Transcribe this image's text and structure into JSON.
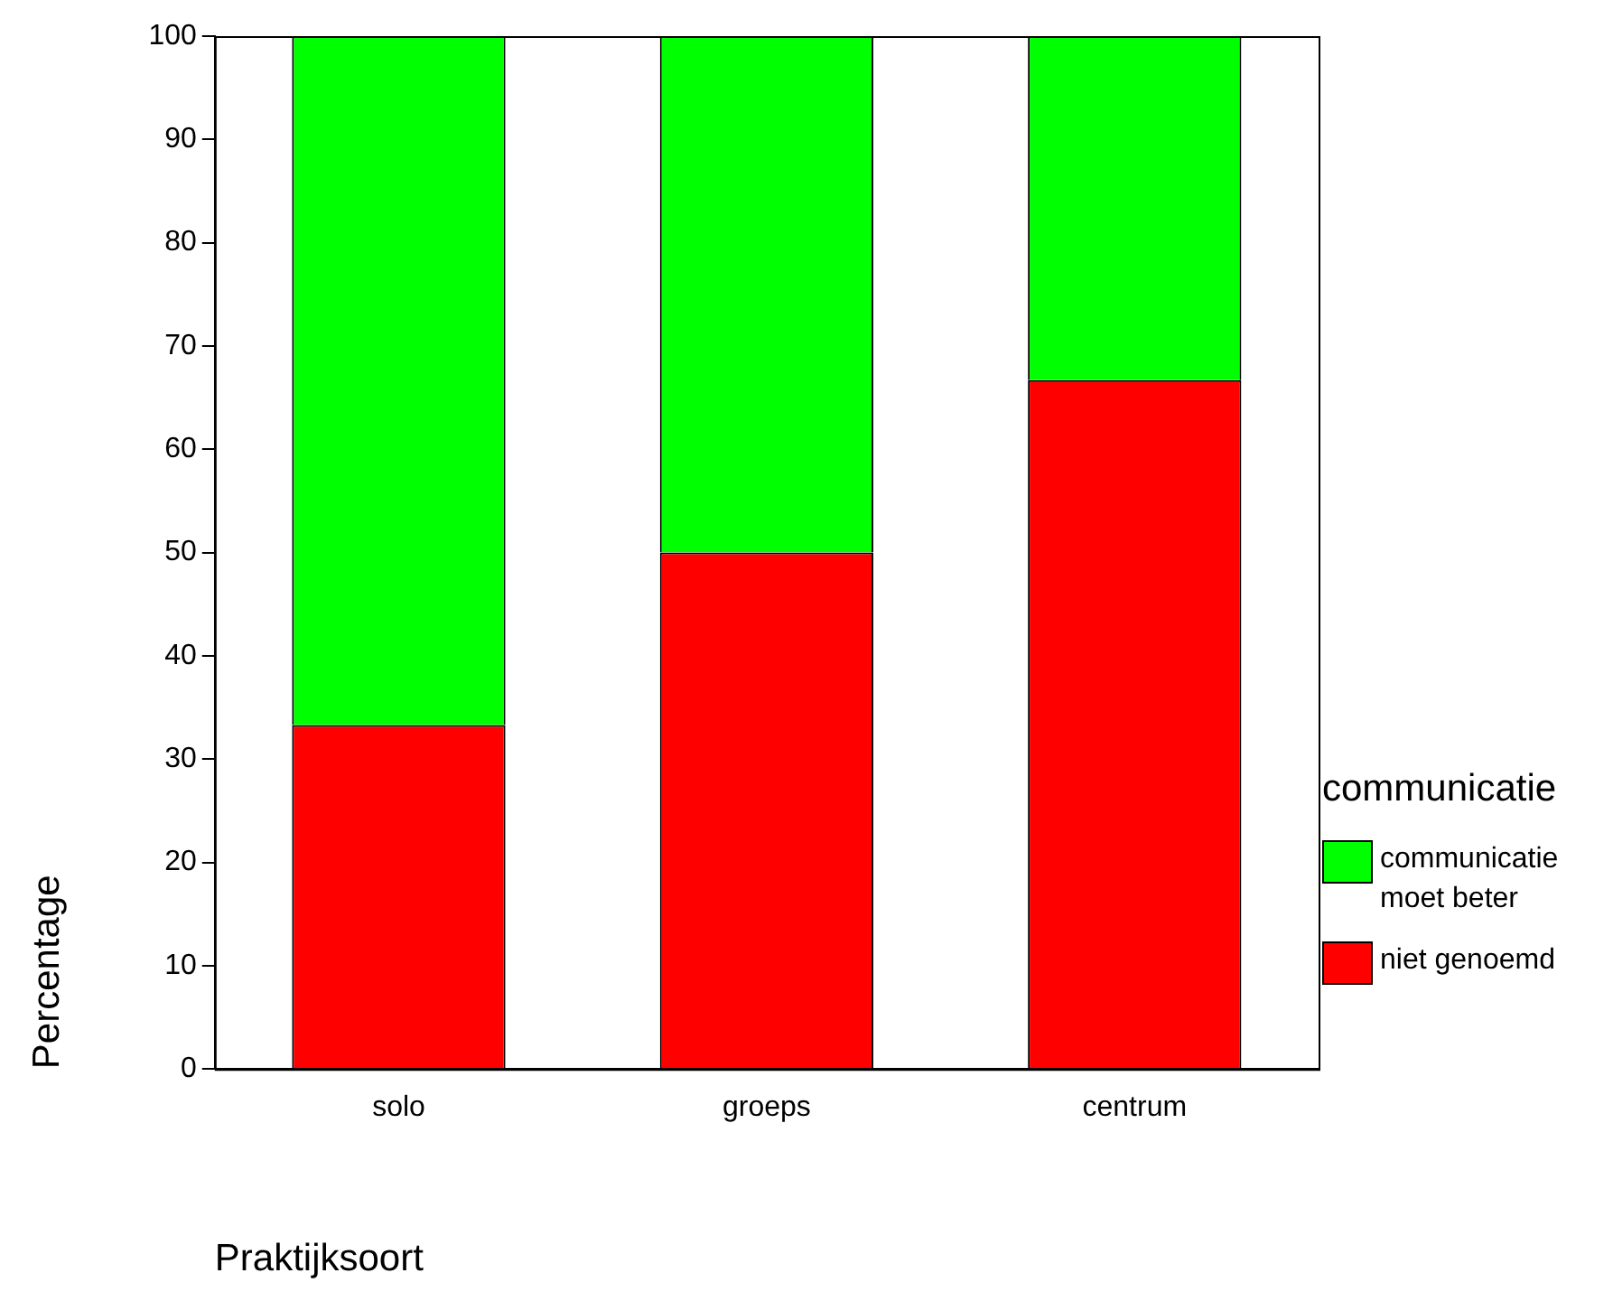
{
  "chart_data": {
    "type": "bar",
    "stacked": true,
    "xlabel": "Praktijksoort",
    "ylabel": "Percentage",
    "legend_title": "communicatie",
    "legend": "right",
    "categories": [
      "solo",
      "groeps",
      "centrum"
    ],
    "series": [
      {
        "name": "niet genoemd",
        "color": "#ff0000",
        "values": [
          33.3,
          50,
          66.7
        ]
      },
      {
        "name": "communicatie moet beter",
        "color": "#00ff00",
        "values": [
          66.7,
          50,
          33.3
        ]
      }
    ],
    "ylim": [
      0,
      100
    ],
    "yticks": [
      0,
      10,
      20,
      30,
      40,
      50,
      60,
      70,
      80,
      90,
      100
    ],
    "grid": false
  }
}
